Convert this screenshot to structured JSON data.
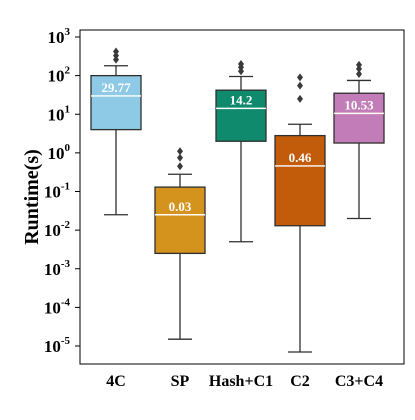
{
  "chart_data": {
    "type": "box",
    "ylabel": "Runtime(s)",
    "yscale": "log",
    "ylim": [
      5e-06,
      1000
    ],
    "yticks": [
      {
        "base": "10",
        "exp": "3"
      },
      {
        "base": "10",
        "exp": "2"
      },
      {
        "base": "10",
        "exp": "1"
      },
      {
        "base": "10",
        "exp": "0"
      },
      {
        "base": "10",
        "exp": "-1"
      },
      {
        "base": "10",
        "exp": "-2"
      },
      {
        "base": "10",
        "exp": "-3"
      },
      {
        "base": "10",
        "exp": "-4"
      },
      {
        "base": "10",
        "exp": "-5"
      }
    ],
    "categories": [
      "4C",
      "SP",
      "Hash+C1",
      "C2",
      "C3+C4"
    ],
    "boxes": [
      {
        "category": "4C",
        "color": "#8ecae6",
        "median_label": "29.77",
        "median_label_color": "#ffffff",
        "whisker_low": 0.025,
        "q1": 4.0,
        "median": 29.77,
        "q3": 100,
        "whisker_high": 180,
        "outliers": [
          260,
          330,
          420
        ]
      },
      {
        "category": "SP",
        "color": "#d4931d",
        "median_label": "0.03",
        "median_label_color": "#ffffff",
        "whisker_low": 1.5e-05,
        "q1": 0.0025,
        "median": 0.025,
        "q3": 0.13,
        "whisker_high": 0.28,
        "outliers": [
          0.45,
          0.75,
          1.1
        ]
      },
      {
        "category": "Hash+C1",
        "color": "#0f8a6c",
        "median_label": "14.2",
        "median_label_color": "#ffffff",
        "whisker_low": 0.005,
        "q1": 2.0,
        "median": 14.2,
        "q3": 42,
        "whisker_high": 95,
        "outliers": [
          130,
          165,
          200
        ]
      },
      {
        "category": "C2",
        "color": "#c35c0a",
        "median_label": "0.46",
        "median_label_color": "#ffffff",
        "whisker_low": 7e-06,
        "q1": 0.013,
        "median": 0.46,
        "q3": 2.8,
        "whisker_high": 5.5,
        "outliers": [
          25,
          55,
          90
        ]
      },
      {
        "category": "C3+C4",
        "color": "#c27db8",
        "median_label": "10.53",
        "median_label_color": "#ffffff",
        "whisker_low": 0.02,
        "q1": 1.8,
        "median": 10.53,
        "q3": 35,
        "whisker_high": 75,
        "outliers": [
          110,
          150,
          190
        ]
      }
    ]
  }
}
